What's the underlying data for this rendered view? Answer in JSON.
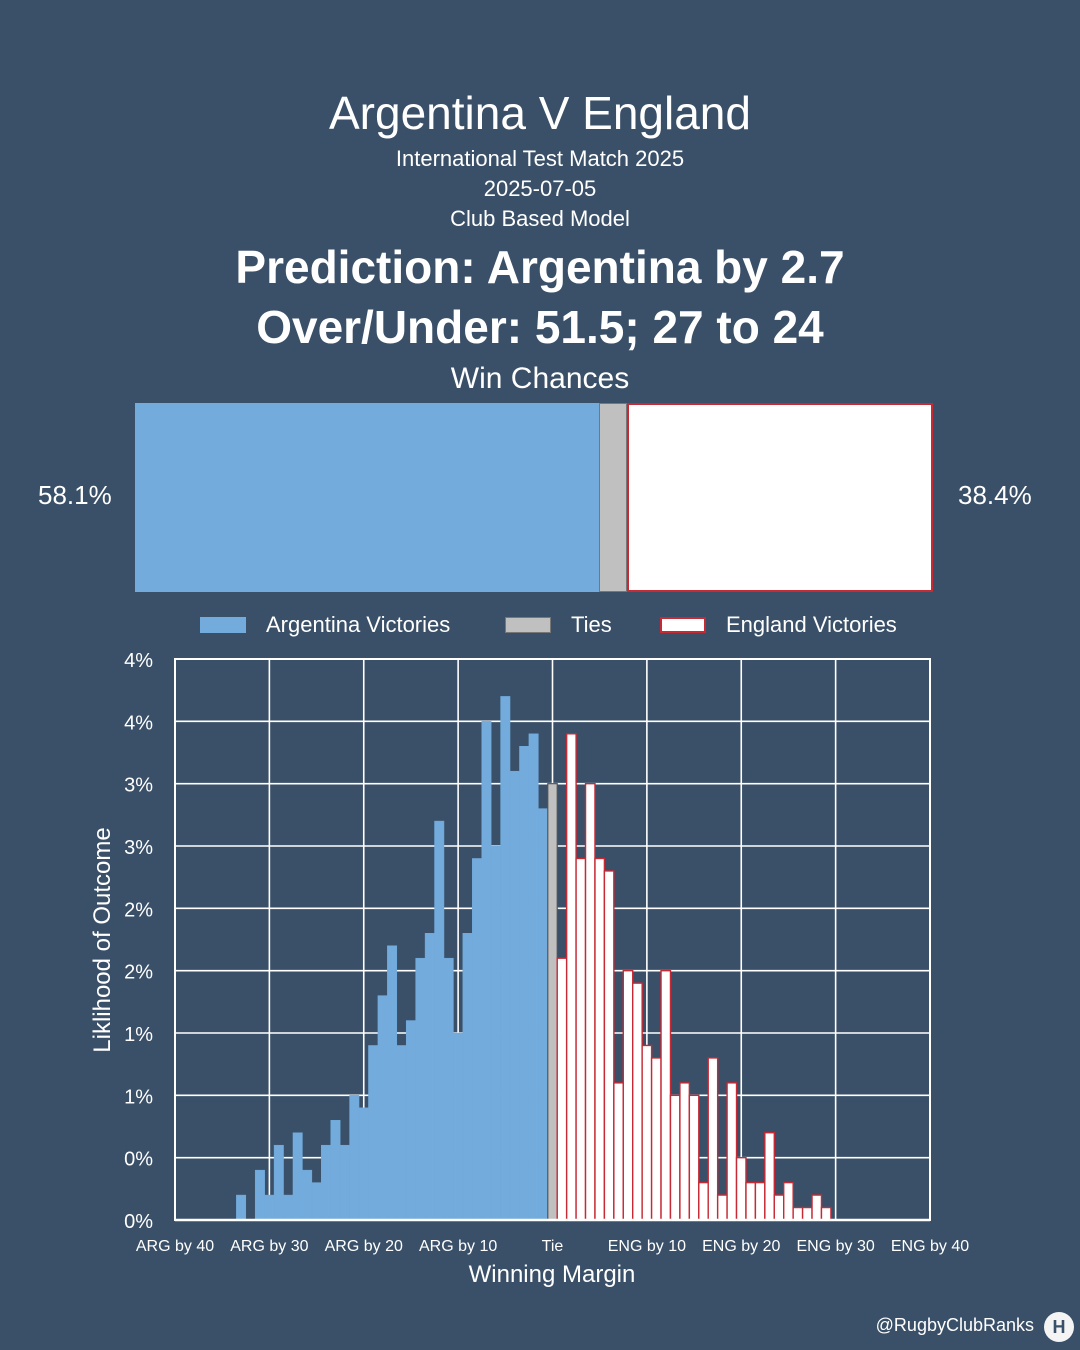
{
  "header": {
    "title": "Argentina V England",
    "subtitle_1": "International Test Match 2025",
    "subtitle_2": "2025-07-05",
    "subtitle_3": "Club Based Model",
    "prediction": "Prediction: Argentina by 2.7",
    "over_under": "Over/Under: 51.5; 27 to 24"
  },
  "win_chances": {
    "title": "Win Chances",
    "argentina_pct": 58.1,
    "tie_pct": 3.5,
    "england_pct": 38.4,
    "argentina_label": "58.1%",
    "england_label": "38.4%"
  },
  "legend": {
    "argentina": "Argentina Victories",
    "ties": "Ties",
    "england": "England Victories"
  },
  "colors": {
    "background": "#3a5068",
    "argentina": "#72abdc",
    "tie": "#c0c0c0",
    "england_fill": "#ffffff",
    "england_edge": "#c62a35",
    "grid": "#ffffff"
  },
  "chart_data": {
    "type": "bar",
    "xlabel": "Winning Margin",
    "ylabel": "Liklihood of Outcome",
    "xlim": [
      -40,
      40
    ],
    "ylim": [
      0,
      4.5
    ],
    "x_ticks": [
      -40,
      -30,
      -20,
      -10,
      0,
      10,
      20,
      30,
      40
    ],
    "x_tick_labels": [
      "ARG by 40",
      "ARG by 30",
      "ARG by 20",
      "ARG by 10",
      "Tie",
      "ENG by 10",
      "ENG by 20",
      "ENG by 30",
      "ENG by 40"
    ],
    "y_ticks": [
      0,
      0.5,
      1.0,
      1.5,
      2.0,
      2.5,
      3.0,
      3.5,
      4.0,
      4.5
    ],
    "y_tick_labels": [
      "0%",
      "0%",
      "1%",
      "1%",
      "2%",
      "2%",
      "3%",
      "3%",
      "4%",
      "4%"
    ],
    "series": [
      {
        "name": "Argentina Victories",
        "x": [
          -33,
          -32,
          -31,
          -30,
          -29,
          -28,
          -27,
          -26,
          -25,
          -24,
          -23,
          -22,
          -21,
          -20,
          -19,
          -18,
          -17,
          -16,
          -15,
          -14,
          -13,
          -12,
          -11,
          -10,
          -9,
          -8,
          -7,
          -6,
          -5,
          -4,
          -3,
          -2,
          -1
        ],
        "values": [
          0.2,
          0.0,
          0.4,
          0.2,
          0.6,
          0.2,
          0.7,
          0.4,
          0.3,
          0.6,
          0.8,
          0.6,
          1.0,
          0.9,
          1.4,
          1.8,
          2.2,
          1.4,
          1.6,
          2.1,
          2.3,
          3.2,
          2.1,
          1.5,
          2.3,
          2.9,
          4.0,
          3.0,
          4.2,
          3.6,
          3.8,
          3.9,
          3.3
        ]
      },
      {
        "name": "Ties",
        "x": [
          0
        ],
        "values": [
          3.5
        ]
      },
      {
        "name": "England Victories",
        "x": [
          1,
          2,
          3,
          4,
          5,
          6,
          7,
          8,
          9,
          10,
          11,
          12,
          13,
          14,
          15,
          16,
          17,
          18,
          19,
          20,
          21,
          22,
          23,
          24,
          25,
          26,
          27,
          28,
          29,
          30,
          31
        ],
        "values": [
          2.1,
          3.9,
          2.9,
          3.5,
          2.9,
          2.8,
          1.1,
          2.0,
          1.9,
          1.4,
          1.3,
          2.0,
          1.0,
          1.1,
          1.0,
          0.3,
          1.3,
          0.2,
          1.1,
          0.5,
          0.3,
          0.3,
          0.7,
          0.2,
          0.3,
          0.1,
          0.1,
          0.2,
          0.1,
          0.0,
          0.0
        ]
      }
    ]
  },
  "footer": {
    "handle": "@RugbyClubRanks",
    "logo_mark": "H"
  }
}
